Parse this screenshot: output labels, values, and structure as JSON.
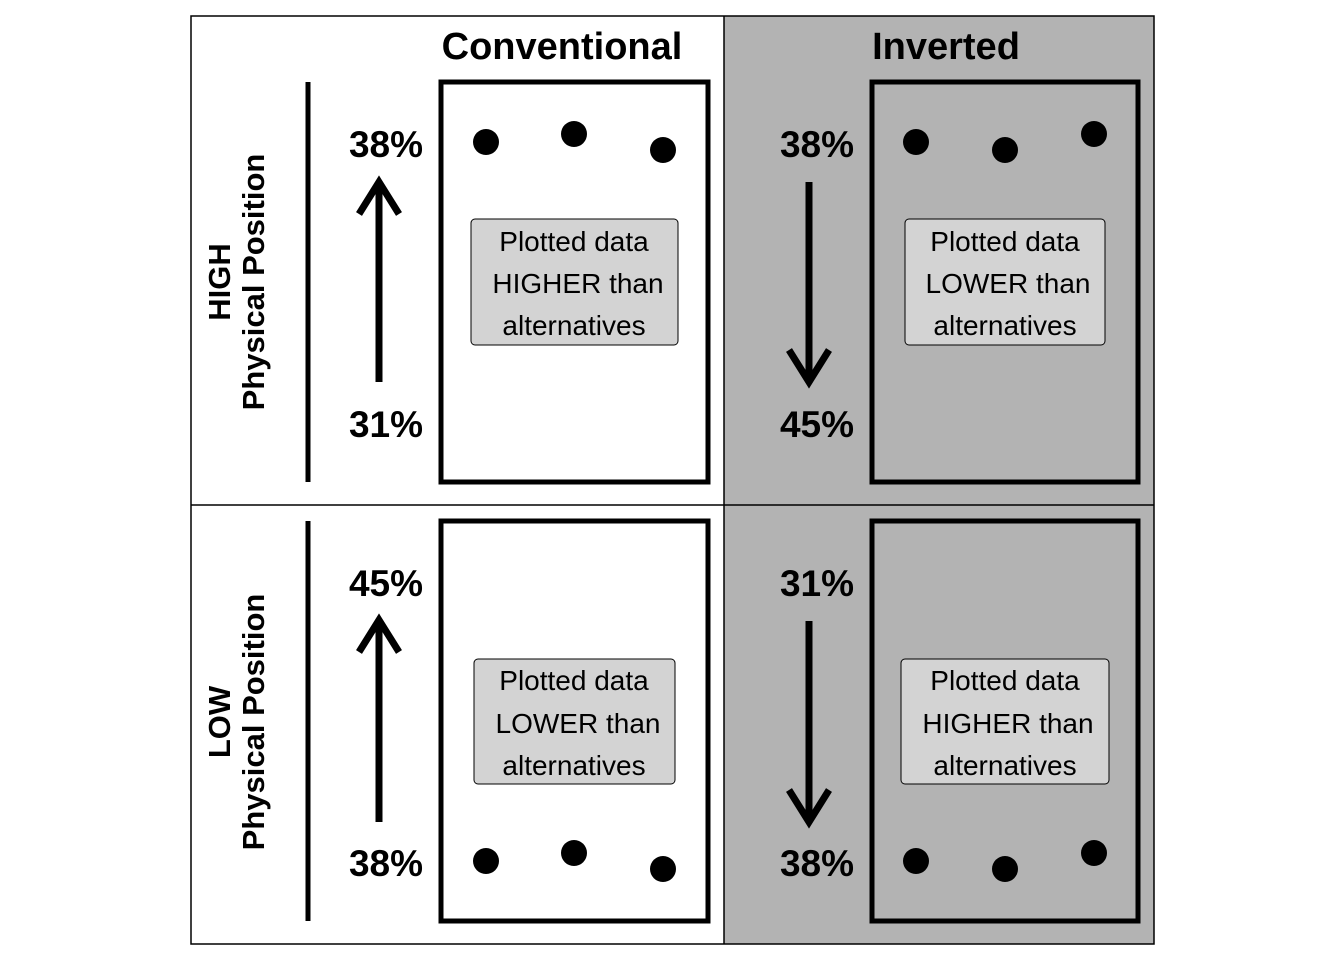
{
  "columns": {
    "conventional": "Conventional",
    "inverted": "Inverted"
  },
  "rows": {
    "high": {
      "line1": "HIGH",
      "line2": "Physical Position"
    },
    "low": {
      "line1": "LOW",
      "line2": "Physical Position"
    }
  },
  "panels": {
    "high_conventional": {
      "top_value": "38%",
      "bottom_value": "31%",
      "arrow_direction": "up",
      "label": [
        "Plotted data",
        "HIGHER than",
        "alternatives"
      ]
    },
    "high_inverted": {
      "top_value": "38%",
      "bottom_value": "45%",
      "arrow_direction": "down",
      "label": [
        "Plotted data",
        "LOWER than",
        "alternatives"
      ]
    },
    "low_conventional": {
      "top_value": "45%",
      "bottom_value": "38%",
      "arrow_direction": "up",
      "label": [
        "Plotted data",
        "LOWER than",
        "alternatives"
      ]
    },
    "low_inverted": {
      "top_value": "31%",
      "bottom_value": "38%",
      "arrow_direction": "down",
      "label": [
        "Plotted data",
        "HIGHER than",
        "alternatives"
      ]
    }
  },
  "colors": {
    "inverted_background": "#b3b3b3",
    "label_box_fill": "#d3d3d3",
    "ink": "#000000"
  }
}
